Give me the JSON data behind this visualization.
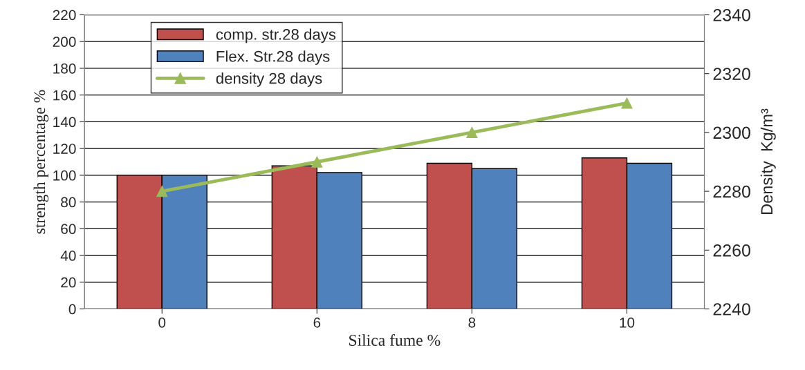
{
  "chart_data": {
    "type": "bar",
    "categories": [
      "0",
      "6",
      "8",
      "10"
    ],
    "xlabel": "Silica fume %",
    "ylabel": "strength percentage %",
    "y2label": "Density  Kg/m³",
    "series": [
      {
        "name": "comp. str.28 days",
        "color": "#c0504d",
        "values": [
          100,
          107,
          109,
          113
        ]
      },
      {
        "name": "Flex. Str.28 days",
        "color": "#4f81bd",
        "values": [
          100,
          102,
          105,
          109
        ]
      },
      {
        "name": "density 28 days",
        "type": "line",
        "axis": "y2",
        "color": "#9bbb59",
        "marker": "triangle",
        "values": [
          2280,
          2290,
          2300,
          2310
        ]
      }
    ],
    "ylim": [
      0,
      220
    ],
    "yticks": [
      0,
      20,
      40,
      60,
      80,
      100,
      120,
      140,
      160,
      180,
      200,
      220
    ],
    "y2lim": [
      2240,
      2340
    ],
    "y2ticks": [
      2240,
      2260,
      2280,
      2300,
      2320,
      2340
    ],
    "grid": "y",
    "legend": "top left"
  }
}
